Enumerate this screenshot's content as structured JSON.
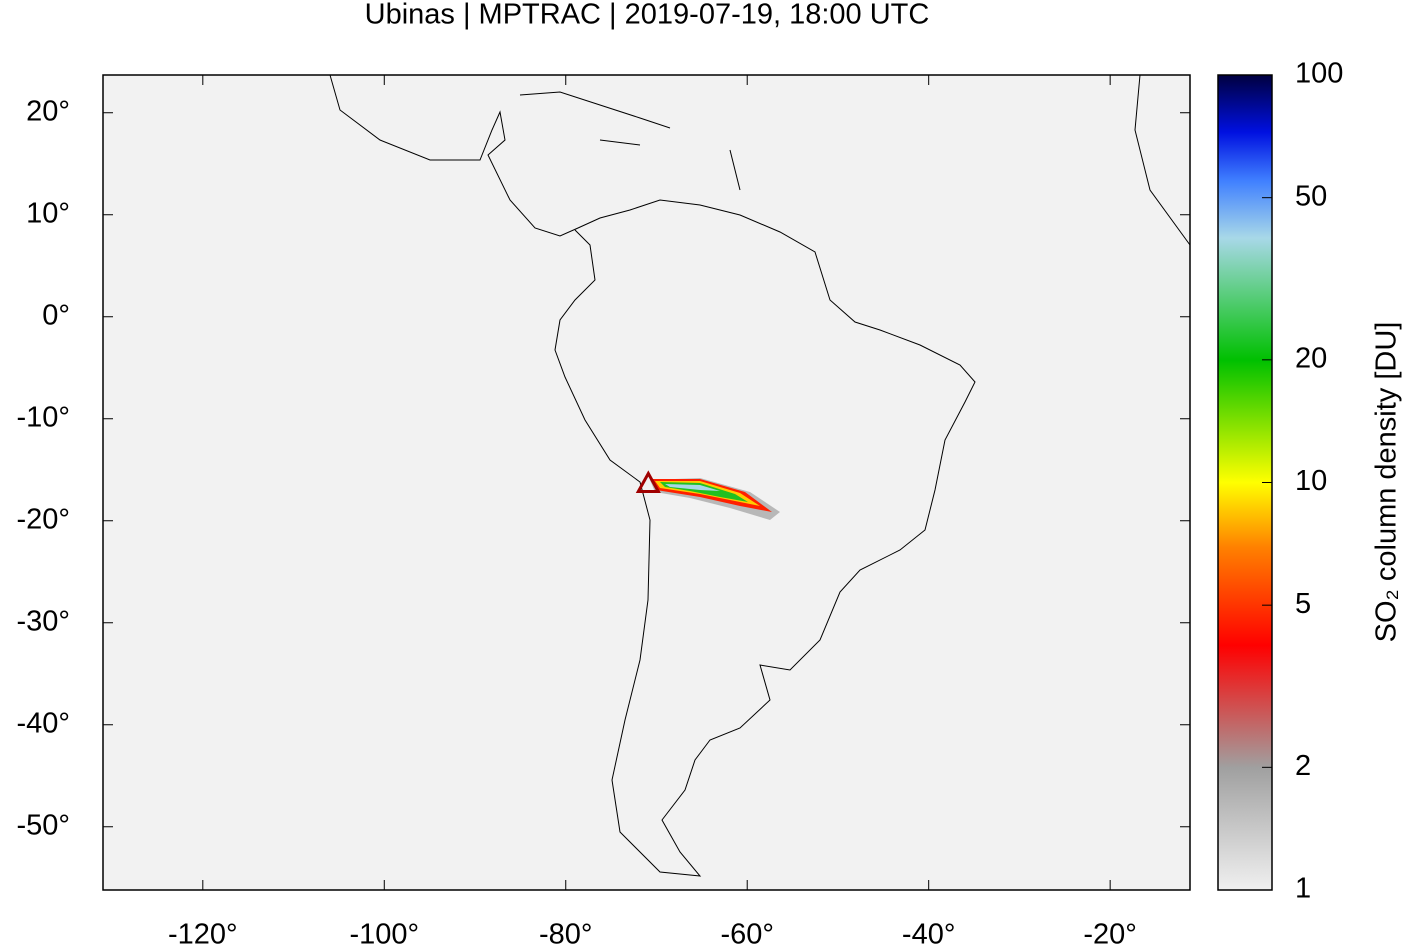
{
  "chart_data": {
    "type": "map",
    "title": "Ubinas | MPTRAC | 2019-07-19, 18:00 UTC",
    "xlim": [
      -131,
      -11.2
    ],
    "ylim": [
      -56.2,
      23.7
    ],
    "xticks": [
      {
        "value": -120,
        "label": "-120°"
      },
      {
        "value": -100,
        "label": "-100°"
      },
      {
        "value": -80,
        "label": "-80°"
      },
      {
        "value": -60,
        "label": "-60°"
      },
      {
        "value": -40,
        "label": "-40°"
      },
      {
        "value": -20,
        "label": "-20°"
      }
    ],
    "yticks": [
      {
        "value": 20,
        "label": "20°"
      },
      {
        "value": 10,
        "label": "10°"
      },
      {
        "value": 0,
        "label": "0°"
      },
      {
        "value": -10,
        "label": "-10°"
      },
      {
        "value": -20,
        "label": "-20°"
      },
      {
        "value": -30,
        "label": "-30°"
      },
      {
        "value": -40,
        "label": "-40°"
      },
      {
        "value": -50,
        "label": "-50°"
      }
    ],
    "volcano": {
      "lon": -70.9,
      "lat": -16.35,
      "color": "#a00000"
    },
    "colorbar": {
      "label": "SO₂ column density [DU]",
      "scale": "log",
      "lim": [
        1,
        100
      ],
      "ticks": [
        1,
        2,
        5,
        10,
        20,
        50,
        100
      ]
    }
  }
}
